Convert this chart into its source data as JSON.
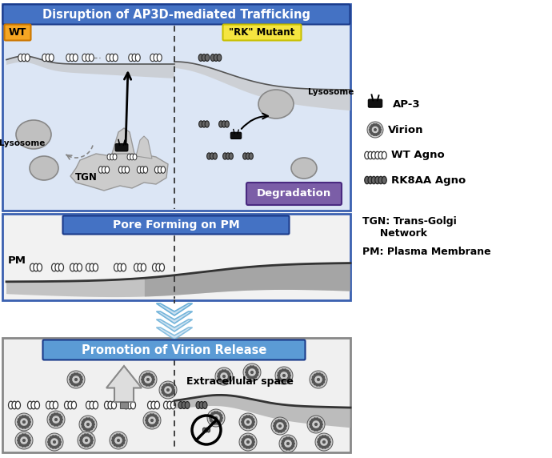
{
  "panel1_title": "Disruption of AP3D-mediated Trafficking",
  "panel2_title": "Pore Forming on PM",
  "panel3_title": "Promotion of Virion Release",
  "wt_label": "WT",
  "rk_label": "\"RK\" Mutant",
  "lysosome_label_left": "Lysosome",
  "lysosome_label_right": "Lysosome",
  "tgn_label": "TGN",
  "degradation_label": "Degradation",
  "pm_label": "PM",
  "extracellular_label": "Extracellular space",
  "legend_ap3": "AP-3",
  "legend_virion": "Virion",
  "legend_wt": "WT Agno",
  "legend_rk": "RK8AA Agno",
  "panel1_bg": "#dce6f5",
  "panel2_bg": "#f2f2f2",
  "panel3_bg": "#f0f0f0",
  "header_blue": "#4472c4",
  "header_purple": "#7b5ea7",
  "header_blue2": "#5b9bd5",
  "wt_box_color": "#f5a623",
  "rk_box_color": "#f5e04a",
  "chevron_fill": "#c8dff0",
  "chevron_edge": "#6ab0d8"
}
